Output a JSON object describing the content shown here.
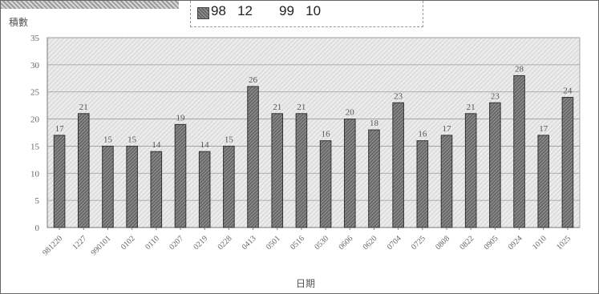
{
  "legend": {
    "text": "98   12       99   10"
  },
  "chart_data": {
    "type": "bar",
    "ylabel": "積數",
    "xlabel": "日期",
    "ylim": [
      0,
      35
    ],
    "yticks": [
      0,
      5,
      10,
      15,
      20,
      25,
      30,
      35
    ],
    "grid": true,
    "categories": [
      "981220",
      "1227",
      "990101",
      "0102",
      "0110",
      "0207",
      "0219",
      "0228",
      "0413",
      "0501",
      "0516",
      "0530",
      "0606",
      "0620",
      "0704",
      "0725",
      "0808",
      "0822",
      "0905",
      "0924",
      "1010",
      "1025"
    ],
    "values": [
      17,
      21,
      15,
      15,
      14,
      19,
      14,
      15,
      26,
      21,
      21,
      16,
      20,
      18,
      23,
      16,
      17,
      21,
      23,
      28,
      17,
      24
    ]
  }
}
